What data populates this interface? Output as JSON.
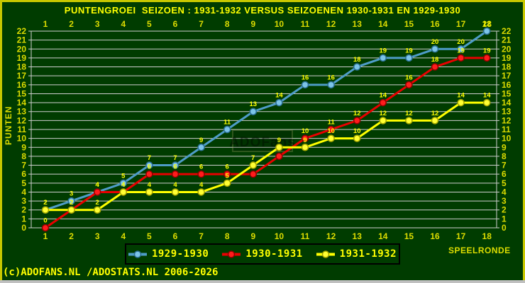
{
  "title": "PUNTENGROEI  SEIZOEN : 1931-1932 VERSUS SEIZOENEN 1930-1931 EN 1929-1930",
  "chart_data": {
    "type": "line",
    "x": [
      1,
      2,
      3,
      4,
      5,
      6,
      7,
      8,
      9,
      10,
      11,
      12,
      13,
      14,
      15,
      16,
      17,
      18
    ],
    "xlabel": "SPEELRONDE",
    "ylabel": "PUNTEN",
    "ylim": [
      0,
      22
    ],
    "grid": "horizontal gridlines every 1 point, 0-22, labels on both sides, round numbers on top and bottom",
    "legend_position": "bottom-center",
    "point_labels": "each data point labeled with its value in yellow",
    "series": [
      {
        "name": "1929-1930",
        "color": "#4E9CC8",
        "marker_fill": "#7CC4E8",
        "marker_stroke": "#2A6E94",
        "values": [
          2,
          3,
          4,
          5,
          7,
          7,
          9,
          11,
          13,
          14,
          16,
          16,
          18,
          19,
          19,
          20,
          20,
          22
        ]
      },
      {
        "name": "1930-1931",
        "color": "#E80000",
        "marker_fill": "#FF1C1C",
        "marker_stroke": "#8F0000",
        "values": [
          0,
          2,
          4,
          4,
          6,
          6,
          6,
          6,
          6,
          8,
          10,
          11,
          12,
          14,
          16,
          18,
          19,
          19
        ]
      },
      {
        "name": "1931-1932",
        "color": "#FFFF00",
        "marker_fill": "#FFFF33",
        "marker_stroke": "#A6A600",
        "values": [
          2,
          2,
          2,
          4,
          4,
          4,
          4,
          5,
          7,
          9,
          9,
          10,
          10,
          12,
          12,
          12,
          14,
          14
        ]
      }
    ]
  },
  "watermark": "ADOFans",
  "footer": {
    "copyright": "(c)ADOFANS.NL /ADOSTATS.NL 2006-2026"
  },
  "colors": {
    "background": "#003C00",
    "title_text": "#FFFF00",
    "axis_text": "#DCDC00",
    "point_label_text": "#FFFF00",
    "gridline": "#CFCFCF",
    "border_top_left_right": "#C8C800",
    "border_bottom": "#C0C0C0",
    "legend_border": "#000000"
  }
}
